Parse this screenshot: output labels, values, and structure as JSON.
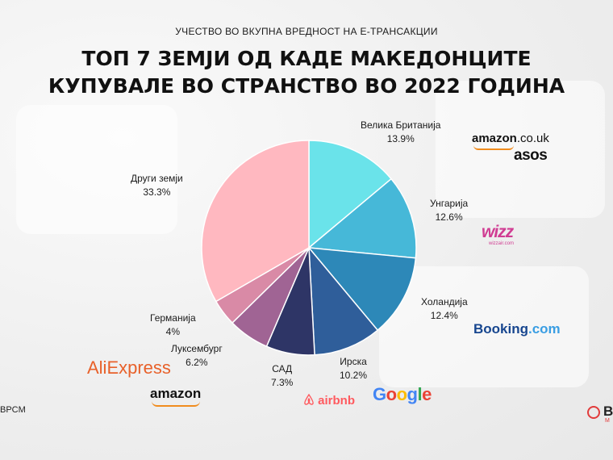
{
  "header": {
    "subtitle": "УЧЕСТВО ВО ВКУПНА ВРЕДНОСТ НА Е-ТРАНСАКЦИИ",
    "title_line1": "ТОП 7 ЗЕМЈИ ОД КАДЕ МАКЕДОНЦИТЕ",
    "title_line2": "КУПУВАЛЕ ВО СТРАНСТВО ВО 2022 ГОДИНА"
  },
  "chart_data": {
    "type": "pie",
    "start": "12 o'clock",
    "direction": "clockwise",
    "slices": [
      {
        "label": "Велика Британија",
        "value_text": "13.9%",
        "value": 13.9,
        "color": "#6ae3ea"
      },
      {
        "label": "Унгарија",
        "value_text": "12.6%",
        "value": 12.6,
        "color": "#46b8d8"
      },
      {
        "label": "Холандија",
        "value_text": "12.4%",
        "value": 12.4,
        "color": "#2d88b8"
      },
      {
        "label": "Ирска",
        "value_text": "10.2%",
        "value": 10.2,
        "color": "#2f5e9a"
      },
      {
        "label": "САД",
        "value_text": "7.3%",
        "value": 7.3,
        "color": "#2e3566"
      },
      {
        "label": "Луксембург",
        "value_text": "6.2%",
        "value": 6.2,
        "color": "#a06494"
      },
      {
        "label": "Германија",
        "value_text": "4%",
        "value": 4.0,
        "color": "#d98aa6"
      },
      {
        "label": "Други земји",
        "value_text": "33.3%",
        "value": 33.3,
        "color": "#ffb8c0"
      }
    ]
  },
  "brands": {
    "amazon_couk_a": "amazon",
    "amazon_couk_b": ".co.uk",
    "asos": "asos",
    "wizz": "wizz",
    "wizz_sub": "wizzair.com",
    "booking_a": "Booking",
    "booking_b": ".com",
    "google": "Google",
    "airbnb": "airbnb",
    "aliexpress": "AliExpress",
    "amazon": "amazon",
    "bpcm": "BPCM",
    "corner": "B",
    "corner_sub": "M"
  }
}
